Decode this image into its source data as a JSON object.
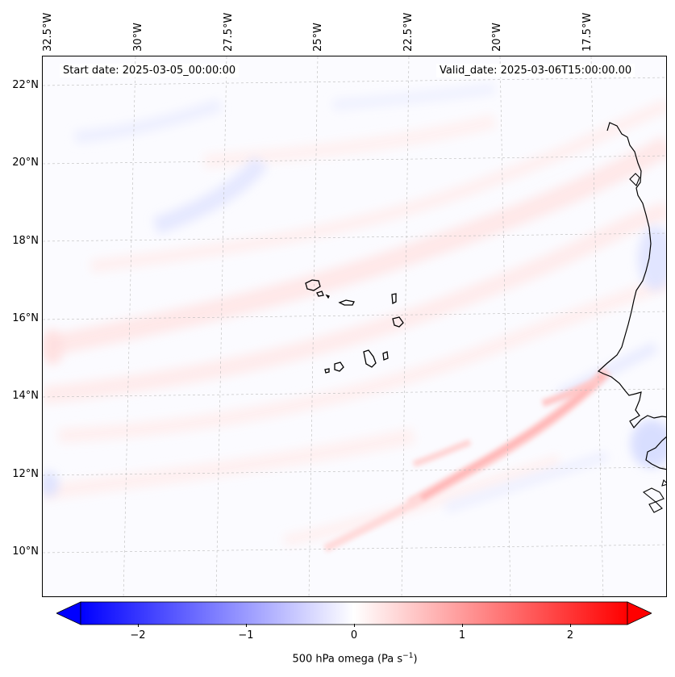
{
  "header": {
    "start_date": "Start date: 2025-03-05_00:00:00",
    "valid_date": "Valid_date: 2025-03-06T15:00:00.00"
  },
  "map": {
    "longitude_labels": [
      "32.5°W",
      "30°W",
      "27.5°W",
      "25°W",
      "22.5°W",
      "20°W",
      "17.5°W"
    ],
    "latitude_labels": [
      "22°N",
      "20°N",
      "18°N",
      "16°N",
      "14°N",
      "12°N",
      "10°N"
    ],
    "field": "500 hPa omega",
    "features": [
      "Cape Verde islands",
      "West African coastline",
      "ascent band (positive omega) near 12°N"
    ]
  },
  "colorbar": {
    "ticks": [
      "−2",
      "−1",
      "0",
      "1",
      "2"
    ],
    "label": "500 hPa omega (Pa s",
    "label_exponent": "−1",
    "label_close": ")",
    "min": -2.7,
    "max": 2.7,
    "colors": {
      "neg": "#0000ff",
      "mid": "#ffffff",
      "pos": "#ff0000"
    }
  }
}
